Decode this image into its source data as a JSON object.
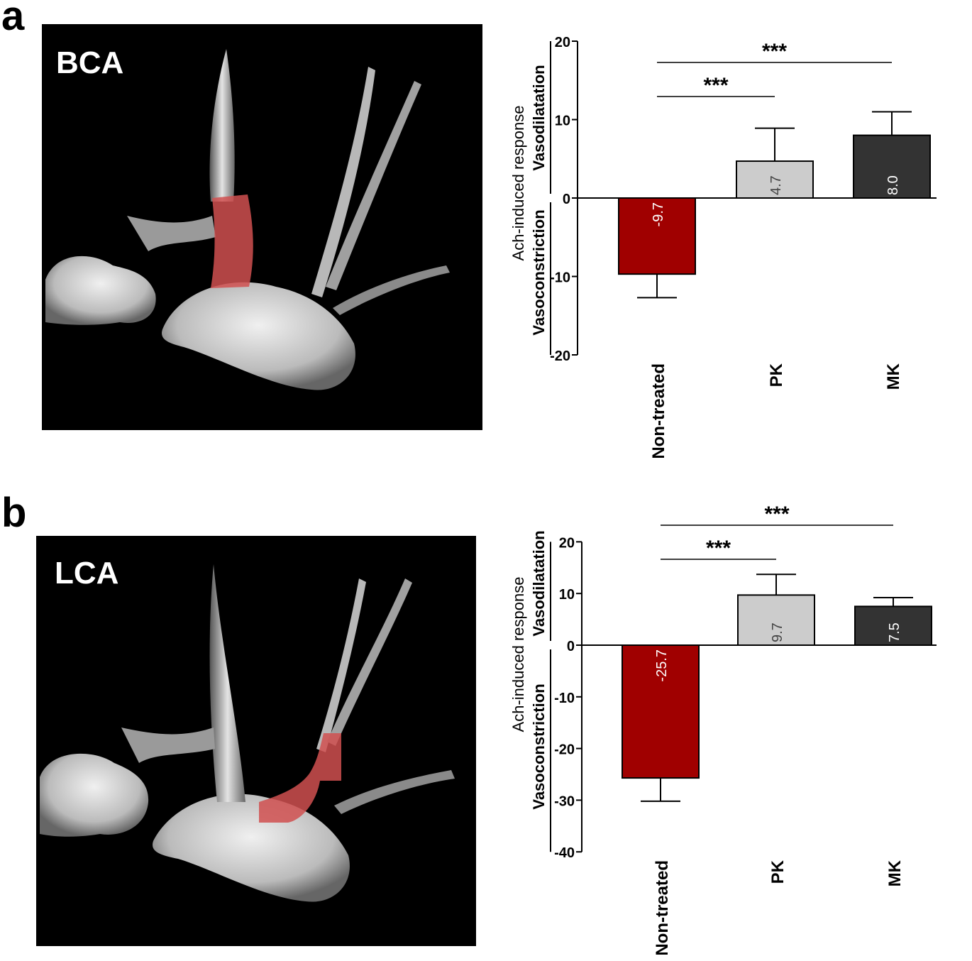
{
  "panels": [
    {
      "letter": "a",
      "image_label": "BCA",
      "chart_data": {
        "type": "bar",
        "categories": [
          "Non-treated",
          "PK",
          "MK"
        ],
        "values": [
          -9.7,
          4.7,
          8.0
        ],
        "value_labels": [
          "-9.7",
          "4.7",
          "8.0"
        ],
        "errors": [
          3.0,
          4.2,
          3.0
        ],
        "colors": [
          "#a00000",
          "#cccccc",
          "#333333"
        ],
        "value_label_colors": [
          "#ffffff",
          "#444444",
          "#ffffff"
        ],
        "ylim": [
          -20,
          20
        ],
        "yticks": [
          20,
          10,
          0,
          -10,
          -20
        ],
        "ylabel": "Ach-induced response",
        "ylabel_upper": "Vasodilatation",
        "ylabel_lower": "Vasoconstriction",
        "significance": [
          {
            "from": 0,
            "to": 1,
            "label": "***"
          },
          {
            "from": 0,
            "to": 2,
            "label": "***"
          }
        ]
      }
    },
    {
      "letter": "b",
      "image_label": "LCA",
      "chart_data": {
        "type": "bar",
        "categories": [
          "Non-treated",
          "PK",
          "MK"
        ],
        "values": [
          -25.7,
          9.7,
          7.5
        ],
        "value_labels": [
          "-25.7",
          "9.7",
          "7.5"
        ],
        "errors": [
          4.5,
          4.0,
          1.7
        ],
        "colors": [
          "#a00000",
          "#cccccc",
          "#333333"
        ],
        "value_label_colors": [
          "#ffffff",
          "#444444",
          "#ffffff"
        ],
        "ylim": [
          -40,
          20
        ],
        "yticks": [
          20,
          10,
          0,
          -10,
          -20,
          -30,
          -40
        ],
        "ylabel": "Ach-induced response",
        "ylabel_upper": "Vasodilatation",
        "ylabel_lower": "Vasoconstriction",
        "significance": [
          {
            "from": 0,
            "to": 1,
            "label": "***"
          },
          {
            "from": 0,
            "to": 2,
            "label": "***"
          }
        ]
      }
    }
  ]
}
